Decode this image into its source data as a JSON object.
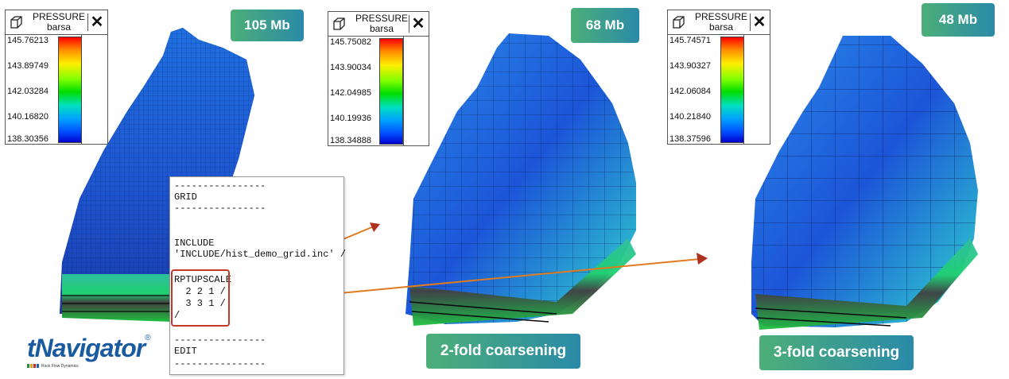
{
  "legends": [
    {
      "title": "PRESSURE",
      "unit": "barsa",
      "ticks": [
        "145.76213",
        "143.89749",
        "142.03284",
        "140.16820",
        "138.30356"
      ]
    },
    {
      "title": "PRESSURE",
      "unit": "barsa",
      "ticks": [
        "145.75082",
        "143.90034",
        "142.04985",
        "140.19936",
        "138.34888"
      ]
    },
    {
      "title": "PRESSURE",
      "unit": "barsa",
      "ticks": [
        "145.74571",
        "143.90327",
        "142.06084",
        "140.21840",
        "138.37596"
      ]
    }
  ],
  "close_glyph": "✕",
  "badges": {
    "size_full": "105 Mb",
    "size_2fold": "68 Mb",
    "size_3fold": "48 Mb"
  },
  "captions": {
    "two_fold": "2-fold coarsening",
    "three_fold": "3-fold coarsening"
  },
  "code_lines": [
    "----------------",
    "GRID",
    "----------------",
    "",
    "",
    "INCLUDE",
    "'INCLUDE/hist_demo_grid.inc' /",
    "",
    "RPTUPSCALE",
    "  2 2 1 /",
    "  3 3 1 /",
    "/",
    "",
    "----------------",
    "EDIT",
    "----------------"
  ],
  "logo": {
    "name": "tNavigator",
    "reg": "®",
    "tagline": "Rock Flow Dynamics"
  },
  "colors": {
    "badge_start": "#4caf78",
    "badge_end": "#2a8aa8",
    "highlight": "#c0392b",
    "arrow_orange": "#e07a1f",
    "arrow_red": "#b03020"
  }
}
